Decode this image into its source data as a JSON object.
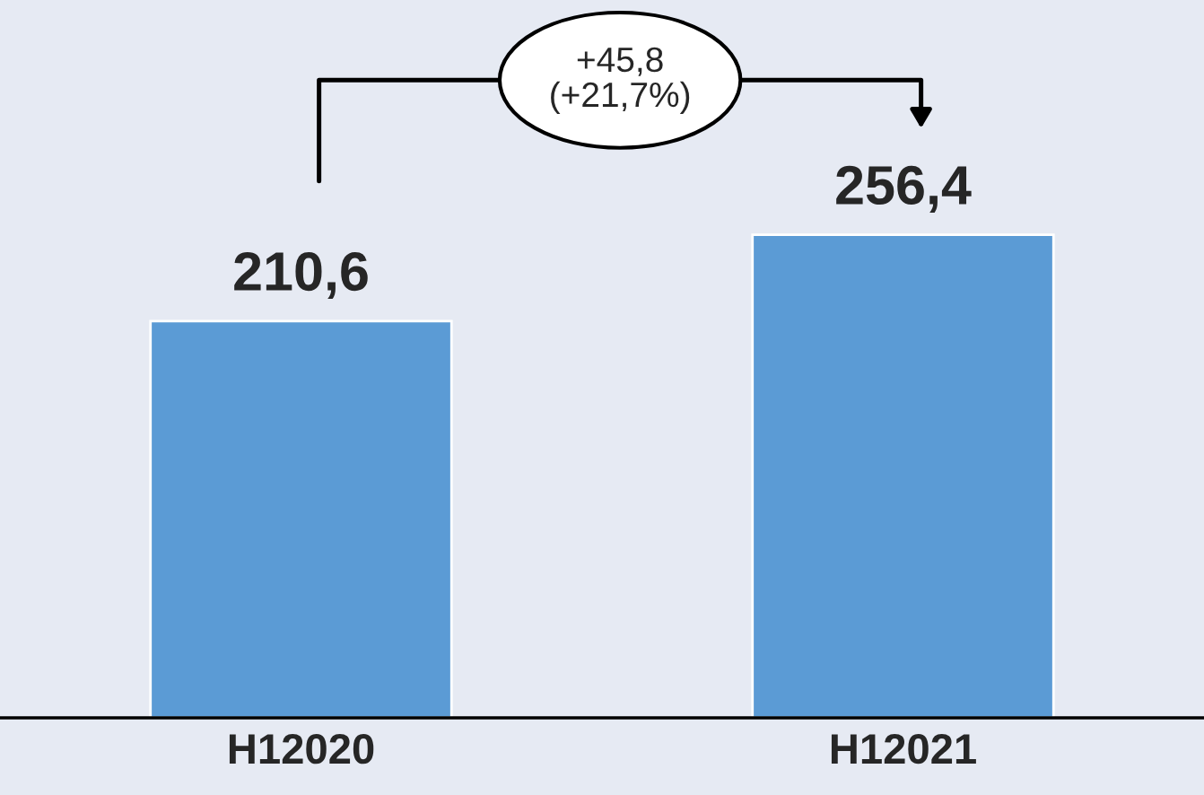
{
  "chart_data": {
    "type": "bar",
    "categories": [
      "H12020",
      "H12021"
    ],
    "values": [
      210.6,
      256.4
    ],
    "value_labels": [
      "210,6",
      "256,4"
    ],
    "color": "#5b9bd5",
    "annotations": [
      "+45,8\n(+21,7%)"
    ],
    "grid": false,
    "legend": false
  }
}
